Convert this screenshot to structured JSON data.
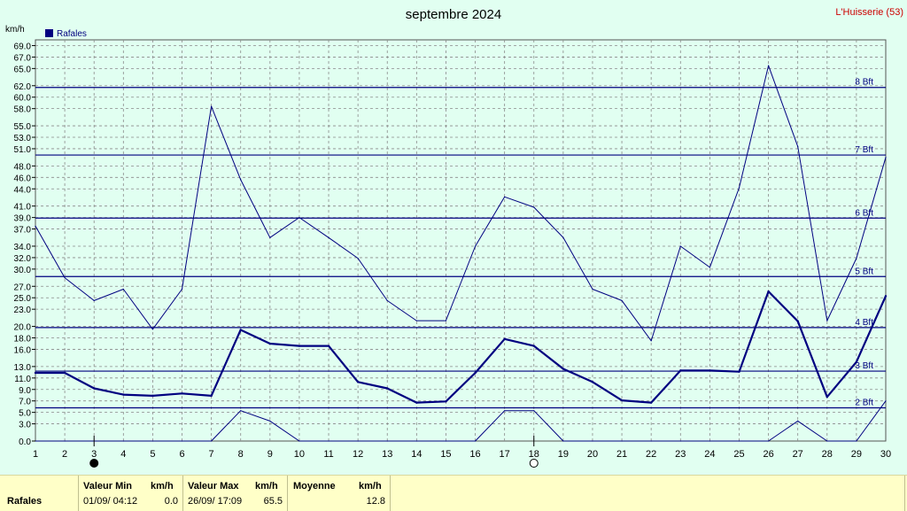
{
  "title": "septembre 2024",
  "station": "L'Huisserie (53)",
  "colors": {
    "background": "#e1fff1",
    "line": "#000080",
    "grid": "#8a8a8a",
    "station": "#cc0000",
    "footer_bg": "#ffffc8"
  },
  "chart_data": {
    "type": "line",
    "title": "septembre 2024",
    "ylabel": "km/h",
    "ylim": [
      0,
      70
    ],
    "x": [
      1,
      2,
      3,
      4,
      5,
      6,
      7,
      8,
      9,
      10,
      11,
      12,
      13,
      14,
      15,
      16,
      17,
      18,
      19,
      20,
      21,
      22,
      23,
      24,
      25,
      26,
      27,
      28,
      29,
      30
    ],
    "x_ticks": [
      "1",
      "2",
      "3",
      "4",
      "5",
      "6",
      "7",
      "8",
      "9",
      "10",
      "11",
      "12",
      "13",
      "14",
      "15",
      "16",
      "17",
      "18",
      "19",
      "20",
      "21",
      "22",
      "23",
      "24",
      "25",
      "26",
      "27",
      "28",
      "29",
      "30"
    ],
    "y_ticks": [
      "0.0",
      "3.0",
      "5.0",
      "7.0",
      "9.0",
      "11.0",
      "13.0",
      "16.0",
      "18.0",
      "20.0",
      "23.0",
      "25.0",
      "27.0",
      "30.0",
      "32.0",
      "34.0",
      "37.0",
      "39.0",
      "41.0",
      "44.0",
      "46.0",
      "48.0",
      "51.0",
      "53.0",
      "55.0",
      "58.0",
      "60.0",
      "62.0",
      "65.0",
      "67.0",
      "69.0"
    ],
    "legend": [
      {
        "name": "Rafales",
        "color": "#000080"
      }
    ],
    "series": [
      {
        "name": "Rafales",
        "role": "mean",
        "values": [
          11.9,
          11.9,
          9.2,
          8.1,
          7.9,
          8.3,
          7.9,
          19.4,
          17.0,
          16.6,
          16.6,
          10.3,
          9.2,
          6.7,
          6.9,
          11.9,
          17.8,
          16.6,
          12.6,
          10.3,
          7.1,
          6.7,
          12.3,
          12.3,
          12.1,
          26.1,
          20.9,
          7.7,
          13.8,
          25.3
        ]
      },
      {
        "name": "",
        "role": "max",
        "values": [
          37.5,
          28.5,
          24.5,
          26.5,
          19.5,
          26.5,
          58.4,
          45.6,
          35.5,
          39.0,
          35.5,
          31.9,
          24.5,
          21.0,
          21.0,
          34.0,
          42.6,
          40.8,
          35.5,
          26.5,
          24.5,
          17.5,
          34.0,
          30.3,
          44.2,
          65.5,
          51.4,
          21.0,
          31.9,
          49.5
        ]
      },
      {
        "name": "",
        "role": "min",
        "values": [
          0,
          0,
          0,
          0,
          0,
          0,
          0,
          5.3,
          3.5,
          0,
          0,
          0,
          0,
          0,
          0,
          0,
          5.3,
          5.3,
          0,
          0,
          0,
          0,
          0,
          0,
          0,
          0,
          3.5,
          0,
          0,
          7.0
        ]
      }
    ],
    "beaufort": [
      {
        "label": "2 Bft",
        "value": 5.8
      },
      {
        "label": "3 Bft",
        "value": 12.2
      },
      {
        "label": "4 Bft",
        "value": 19.8
      },
      {
        "label": "5 Bft",
        "value": 28.7
      },
      {
        "label": "6 Bft",
        "value": 38.9
      },
      {
        "label": "7 Bft",
        "value": 49.9
      },
      {
        "label": "8 Bft",
        "value": 61.7
      }
    ],
    "moon_phases": [
      {
        "day": 3,
        "phase": "new"
      },
      {
        "day": 18,
        "phase": "full"
      }
    ],
    "grid": true,
    "legend_position": "top-left"
  },
  "footer": {
    "label": "Rafales",
    "min_header": "Valeur Min",
    "min_unit": "km/h",
    "min_date": "01/09/  04:12",
    "min_value": "0.0",
    "max_header": "Valeur Max",
    "max_unit": "km/h",
    "max_date": "26/09/  17:09",
    "max_value": "65.5",
    "avg_header": "Moyenne",
    "avg_unit": "km/h",
    "avg_value": "12.8"
  }
}
